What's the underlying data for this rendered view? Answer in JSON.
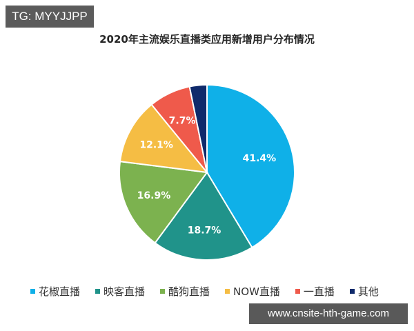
{
  "watermark_top": "TG: MYYJJPP",
  "watermark_bottom": "www.cnsite-hth-game.com",
  "chart_data": {
    "type": "pie",
    "title": "2020年主流娱乐直播类应用新增用户分布情况",
    "categories": [
      "花椒直播",
      "映客直播",
      "酷狗直播",
      "NOW直播",
      "一直播",
      "其他"
    ],
    "values": [
      41.4,
      18.7,
      16.9,
      12.1,
      7.7,
      3.2
    ],
    "labels": [
      "41.4%",
      "18.7%",
      "16.9%",
      "12.1%",
      "7.7%",
      ""
    ],
    "colors": [
      "#0fb0e8",
      "#20938a",
      "#7cb24f",
      "#f5bd44",
      "#ef5a4b",
      "#0f2a6b"
    ],
    "start_angle_deg": 0,
    "direction": "clockwise",
    "legend_position": "bottom"
  }
}
